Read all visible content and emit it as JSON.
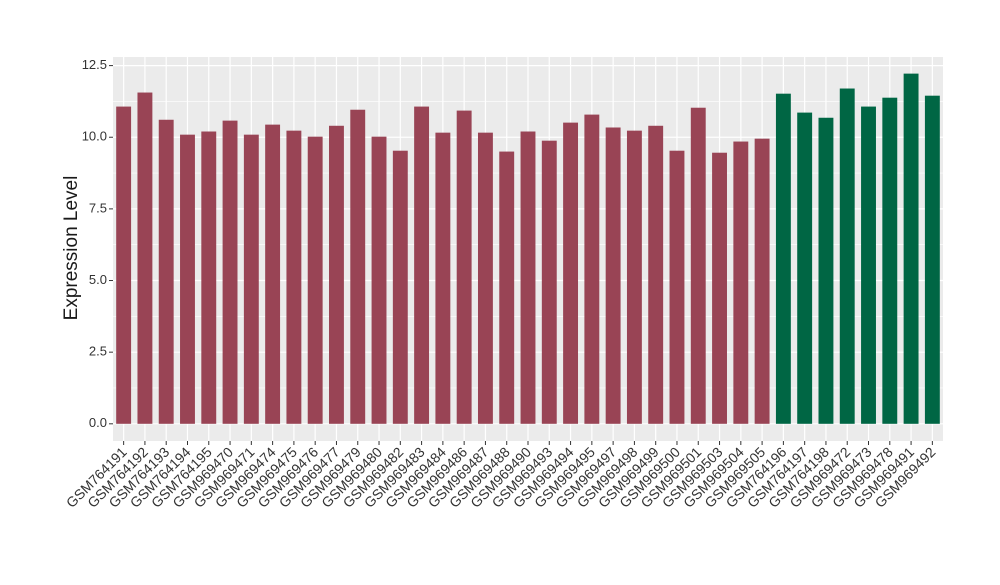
{
  "chart_data": {
    "type": "bar",
    "y_label": "Expression Level",
    "categories": [
      "GSM764191",
      "GSM764192",
      "GSM764193",
      "GSM764194",
      "GSM764195",
      "GSM969470",
      "GSM969471",
      "GSM969474",
      "GSM969475",
      "GSM969476",
      "GSM969477",
      "GSM969479",
      "GSM969480",
      "GSM969482",
      "GSM969483",
      "GSM969484",
      "GSM969486",
      "GSM969487",
      "GSM969488",
      "GSM969490",
      "GSM969493",
      "GSM969494",
      "GSM969495",
      "GSM969497",
      "GSM969498",
      "GSM969499",
      "GSM969500",
      "GSM969501",
      "GSM969503",
      "GSM969504",
      "GSM969505",
      "GSM764196",
      "GSM764197",
      "GSM764198",
      "GSM969472",
      "GSM969473",
      "GSM969478",
      "GSM969491",
      "GSM969492"
    ],
    "values": [
      11.07,
      11.56,
      10.61,
      10.09,
      10.2,
      10.58,
      10.09,
      10.44,
      10.23,
      10.02,
      10.4,
      10.96,
      10.02,
      9.53,
      11.07,
      10.16,
      10.93,
      10.16,
      9.5,
      10.2,
      9.88,
      10.51,
      10.79,
      10.34,
      10.23,
      10.4,
      9.53,
      11.03,
      9.46,
      9.85,
      9.95,
      11.52,
      10.86,
      10.68,
      11.7,
      11.07,
      11.38,
      12.22,
      11.45
    ],
    "colors": [
      "#994455",
      "#994455",
      "#994455",
      "#994455",
      "#994455",
      "#994455",
      "#994455",
      "#994455",
      "#994455",
      "#994455",
      "#994455",
      "#994455",
      "#994455",
      "#994455",
      "#994455",
      "#994455",
      "#994455",
      "#994455",
      "#994455",
      "#994455",
      "#994455",
      "#994455",
      "#994455",
      "#994455",
      "#994455",
      "#994455",
      "#994455",
      "#994455",
      "#994455",
      "#994455",
      "#994455",
      "#006644",
      "#006644",
      "#006644",
      "#006644",
      "#006644",
      "#006644",
      "#006644",
      "#006644"
    ],
    "ylim": [
      -0.6,
      12.8
    ],
    "yticks": [
      {
        "value": 0,
        "label": "0.0"
      },
      2.5,
      {
        "value": 5,
        "label": "5.0"
      },
      7.5,
      {
        "value": 10,
        "label": "10.0"
      },
      12.5
    ],
    "grid": true
  }
}
